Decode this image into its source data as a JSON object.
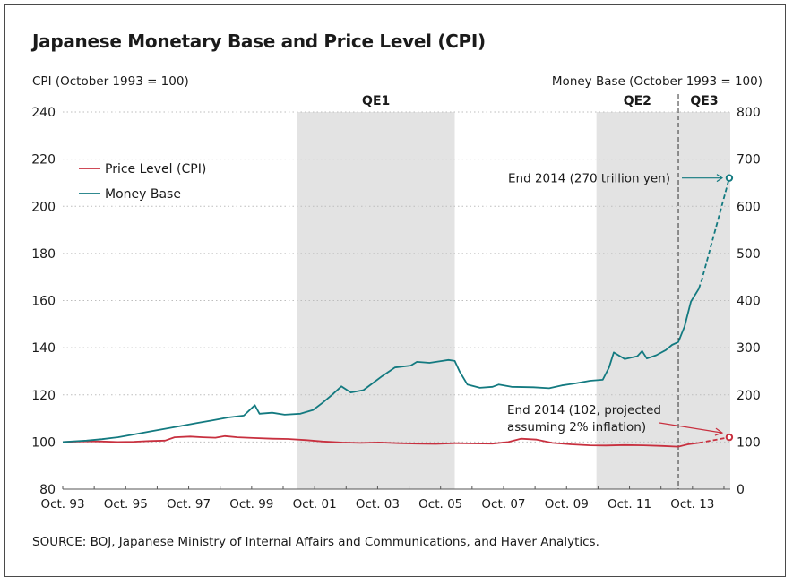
{
  "chart_data": {
    "type": "line",
    "title": "Japanese Monetary Base and Price Level (CPI)",
    "ylabel_left": "CPI (October 1993 = 100)",
    "ylabel_right": "Money Base (October 1993 = 100)",
    "xlabel": "",
    "ylim_left": [
      80,
      240
    ],
    "ylim_right": [
      0,
      800
    ],
    "yticks_left": [
      80,
      100,
      120,
      140,
      160,
      180,
      200,
      220,
      240
    ],
    "yticks_right": [
      0,
      100,
      200,
      300,
      400,
      500,
      600,
      700,
      800
    ],
    "xlim": [
      1993.75,
      2014.95
    ],
    "xticks": [
      {
        "x": 1993.75,
        "label": "Oct. 93"
      },
      {
        "x": 1995.75,
        "label": "Oct. 95"
      },
      {
        "x": 1997.75,
        "label": "Oct. 97"
      },
      {
        "x": 1999.75,
        "label": "Oct. 99"
      },
      {
        "x": 2001.75,
        "label": "Oct. 01"
      },
      {
        "x": 2003.75,
        "label": "Oct. 03"
      },
      {
        "x": 2005.75,
        "label": "Oct. 05"
      },
      {
        "x": 2007.75,
        "label": "Oct. 07"
      },
      {
        "x": 2009.75,
        "label": "Oct. 09"
      },
      {
        "x": 2011.75,
        "label": "Oct. 11"
      },
      {
        "x": 2013.75,
        "label": "Oct. 13"
      }
    ],
    "grid": true,
    "legend_position": "top-left",
    "shaded_regions": [
      {
        "label": "QE1",
        "start": 2001.2,
        "end": 2006.2
      },
      {
        "label": "QE2",
        "start": 2010.7,
        "end": 2013.3
      },
      {
        "label": "QE3",
        "start": 2013.3,
        "end": 2014.95
      }
    ],
    "vertical_marker": {
      "x": 2013.3,
      "style": "dashed"
    },
    "series": [
      {
        "name": "Price Level (CPI)",
        "axis": "left",
        "color": "#c8303f",
        "points": [
          [
            1993.75,
            100.0
          ],
          [
            1994.5,
            100.3
          ],
          [
            1995.0,
            100.2
          ],
          [
            1995.5,
            100.0
          ],
          [
            1996.0,
            100.1
          ],
          [
            1996.5,
            100.4
          ],
          [
            1997.0,
            100.6
          ],
          [
            1997.3,
            102.0
          ],
          [
            1997.8,
            102.3
          ],
          [
            1998.2,
            102.0
          ],
          [
            1998.6,
            101.8
          ],
          [
            1998.9,
            102.5
          ],
          [
            1999.3,
            102.0
          ],
          [
            1999.8,
            101.7
          ],
          [
            2000.4,
            101.4
          ],
          [
            2000.9,
            101.3
          ],
          [
            2001.5,
            100.8
          ],
          [
            2002.0,
            100.2
          ],
          [
            2002.6,
            99.8
          ],
          [
            2003.2,
            99.6
          ],
          [
            2003.8,
            99.8
          ],
          [
            2004.4,
            99.5
          ],
          [
            2005.0,
            99.3
          ],
          [
            2005.6,
            99.2
          ],
          [
            2006.2,
            99.5
          ],
          [
            2006.8,
            99.4
          ],
          [
            2007.4,
            99.3
          ],
          [
            2007.9,
            100.0
          ],
          [
            2008.3,
            101.4
          ],
          [
            2008.8,
            101.0
          ],
          [
            2009.3,
            99.6
          ],
          [
            2009.9,
            99.0
          ],
          [
            2010.5,
            98.6
          ],
          [
            2011.0,
            98.5
          ],
          [
            2011.6,
            98.7
          ],
          [
            2012.2,
            98.6
          ],
          [
            2012.8,
            98.3
          ],
          [
            2013.3,
            98.0
          ],
          [
            2013.6,
            99.0
          ],
          [
            2013.95,
            99.6
          ]
        ],
        "projection": [
          [
            2013.95,
            99.6
          ],
          [
            2014.92,
            102.0
          ]
        ]
      },
      {
        "name": "Money Base",
        "axis": "right",
        "color": "#137a80",
        "points": [
          [
            1993.75,
            100
          ],
          [
            1994.5,
            103
          ],
          [
            1995.0,
            106
          ],
          [
            1995.5,
            110
          ],
          [
            1996.0,
            116
          ],
          [
            1996.5,
            122
          ],
          [
            1997.0,
            128
          ],
          [
            1997.5,
            134
          ],
          [
            1998.0,
            140
          ],
          [
            1998.5,
            146
          ],
          [
            1999.0,
            152
          ],
          [
            1999.5,
            156
          ],
          [
            1999.85,
            178
          ],
          [
            2000.0,
            160
          ],
          [
            2000.4,
            162
          ],
          [
            2000.8,
            158
          ],
          [
            2001.3,
            160
          ],
          [
            2001.7,
            168
          ],
          [
            2002.0,
            183
          ],
          [
            2002.3,
            200
          ],
          [
            2002.6,
            218
          ],
          [
            2002.9,
            205
          ],
          [
            2003.3,
            210
          ],
          [
            2003.6,
            225
          ],
          [
            2003.9,
            240
          ],
          [
            2004.3,
            258
          ],
          [
            2004.8,
            262
          ],
          [
            2005.0,
            270
          ],
          [
            2005.4,
            268
          ],
          [
            2005.8,
            272
          ],
          [
            2006.0,
            274
          ],
          [
            2006.2,
            272
          ],
          [
            2006.35,
            250
          ],
          [
            2006.6,
            222
          ],
          [
            2007.0,
            215
          ],
          [
            2007.4,
            217
          ],
          [
            2007.6,
            222
          ],
          [
            2008.0,
            217
          ],
          [
            2008.7,
            216
          ],
          [
            2009.2,
            214
          ],
          [
            2009.6,
            220
          ],
          [
            2010.0,
            224
          ],
          [
            2010.5,
            230
          ],
          [
            2010.9,
            232
          ],
          [
            2011.1,
            258
          ],
          [
            2011.25,
            290
          ],
          [
            2011.6,
            276
          ],
          [
            2012.0,
            282
          ],
          [
            2012.15,
            293
          ],
          [
            2012.3,
            277
          ],
          [
            2012.6,
            284
          ],
          [
            2012.9,
            295
          ],
          [
            2013.1,
            306
          ],
          [
            2013.3,
            312
          ],
          [
            2013.5,
            345
          ],
          [
            2013.7,
            398
          ],
          [
            2013.95,
            425
          ]
        ],
        "projection": [
          [
            2013.95,
            425
          ],
          [
            2014.05,
            445
          ],
          [
            2014.92,
            660
          ]
        ]
      }
    ],
    "annotations": [
      {
        "text": "End 2014 (270 trillion yen)",
        "target_series": "Money Base",
        "target": [
          2014.92,
          660
        ]
      },
      {
        "text_lines": [
          "End 2014 (102, projected",
          "assuming 2% inflation)"
        ],
        "target_series": "Price Level (CPI)",
        "target": [
          2014.92,
          102
        ]
      }
    ],
    "source": "SOURCE: BOJ, Japanese Ministry of Internal Affairs and Communications, and Haver Analytics."
  }
}
